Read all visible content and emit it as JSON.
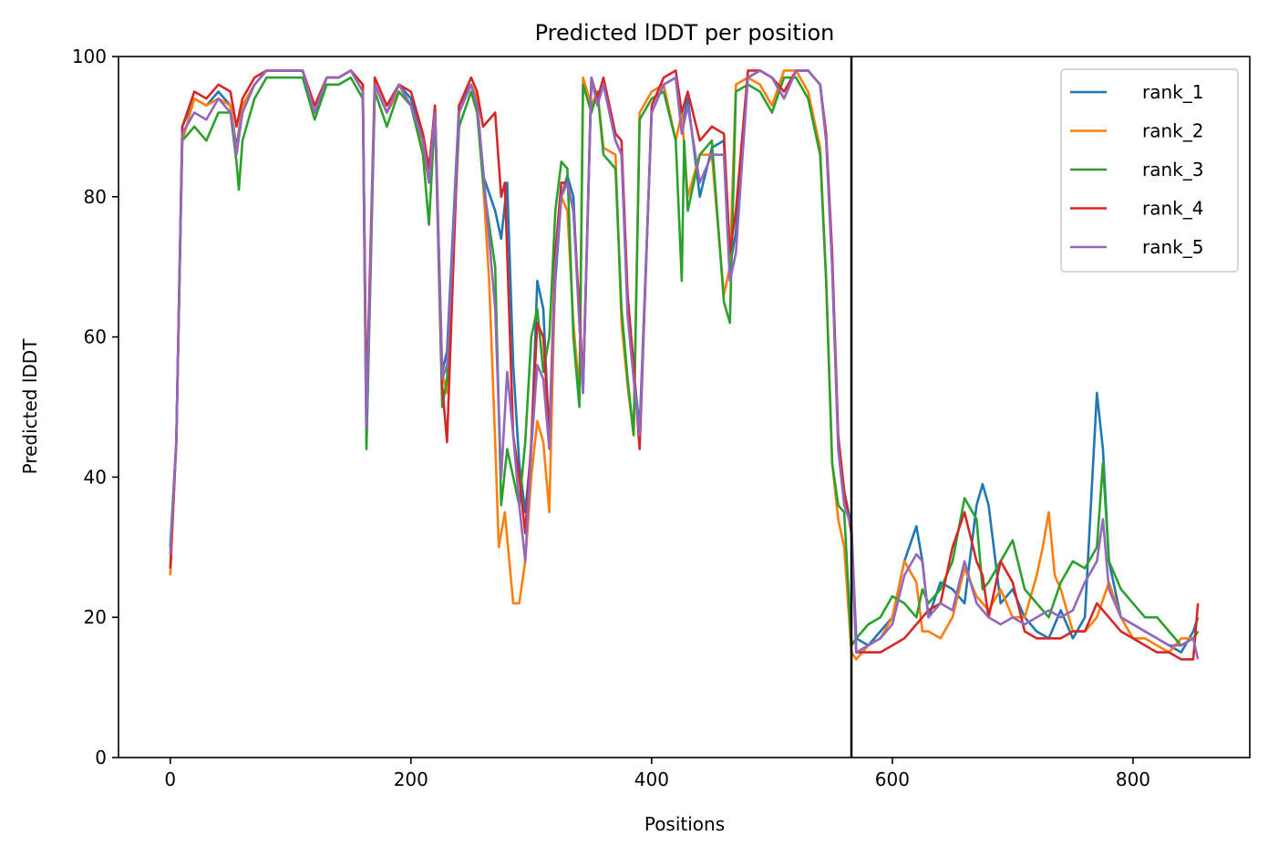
{
  "chart_data": {
    "type": "line",
    "title": "Predicted lDDT per position",
    "xlabel": "Positions",
    "ylabel": "Predicted lDDT",
    "xlim": [
      -43,
      897
    ],
    "ylim": [
      0,
      100
    ],
    "xticks": [
      0,
      200,
      400,
      600,
      800
    ],
    "yticks": [
      0,
      20,
      40,
      60,
      80,
      100
    ],
    "grid": false,
    "legend": "top-right",
    "divider_x": 566,
    "series": [
      {
        "name": "rank_1",
        "color": "#1f77b4",
        "x": [
          0,
          5,
          10,
          20,
          30,
          40,
          50,
          55,
          60,
          70,
          80,
          90,
          100,
          110,
          120,
          130,
          140,
          150,
          160,
          163,
          170,
          180,
          190,
          200,
          210,
          215,
          220,
          226,
          230,
          240,
          250,
          255,
          260,
          270,
          275,
          280,
          285,
          290,
          295,
          300,
          305,
          310,
          315,
          320,
          325,
          330,
          335,
          340,
          343,
          350,
          355,
          360,
          370,
          375,
          380,
          385,
          390,
          400,
          410,
          420,
          425,
          430,
          440,
          450,
          460,
          465,
          470,
          480,
          490,
          500,
          510,
          520,
          530,
          540,
          545,
          550,
          555,
          560,
          566,
          570,
          580,
          590,
          600,
          610,
          620,
          625,
          630,
          640,
          650,
          660,
          670,
          675,
          680,
          690,
          700,
          710,
          720,
          730,
          740,
          750,
          760,
          770,
          775,
          780,
          790,
          800,
          810,
          820,
          830,
          840,
          850,
          854
        ],
        "values": [
          30,
          45,
          90,
          94,
          93,
          95,
          93,
          87,
          93,
          96,
          98,
          98,
          98,
          98,
          92,
          97,
          97,
          98,
          96,
          45,
          96,
          92,
          96,
          94,
          88,
          82,
          93,
          55,
          58,
          93,
          96,
          94,
          83,
          78,
          74,
          82,
          56,
          42,
          35,
          44,
          68,
          64,
          45,
          68,
          80,
          83,
          80,
          62,
          52,
          97,
          93,
          96,
          88,
          86,
          65,
          55,
          47,
          92,
          96,
          97,
          90,
          94,
          80,
          87,
          88,
          70,
          75,
          97,
          98,
          97,
          94,
          98,
          98,
          96,
          88,
          70,
          45,
          38,
          33,
          17,
          16,
          18,
          20,
          28,
          33,
          28,
          20,
          25,
          24,
          22,
          36,
          39,
          36,
          22,
          24,
          20,
          18,
          17,
          21,
          17,
          20,
          52,
          44,
          28,
          20,
          19,
          18,
          17,
          16,
          15,
          18,
          20
        ]
      },
      {
        "name": "rank_2",
        "color": "#ff7f0e",
        "x": [
          0,
          5,
          10,
          20,
          30,
          40,
          50,
          55,
          60,
          70,
          80,
          90,
          100,
          110,
          120,
          130,
          140,
          150,
          160,
          163,
          170,
          180,
          190,
          200,
          210,
          215,
          220,
          226,
          230,
          240,
          250,
          255,
          260,
          265,
          270,
          273,
          278,
          285,
          290,
          295,
          300,
          305,
          310,
          315,
          320,
          325,
          330,
          335,
          340,
          343,
          350,
          355,
          360,
          370,
          375,
          380,
          385,
          390,
          400,
          410,
          420,
          425,
          430,
          440,
          450,
          460,
          465,
          470,
          480,
          490,
          500,
          510,
          520,
          530,
          540,
          545,
          550,
          555,
          560,
          566,
          570,
          580,
          590,
          600,
          610,
          620,
          625,
          630,
          640,
          650,
          660,
          670,
          680,
          690,
          700,
          710,
          720,
          725,
          730,
          735,
          740,
          750,
          760,
          770,
          780,
          790,
          800,
          810,
          820,
          830,
          840,
          850,
          854
        ],
        "values": [
          26,
          45,
          88,
          94,
          93,
          94,
          93,
          86,
          93,
          96,
          98,
          98,
          98,
          98,
          92,
          97,
          97,
          98,
          96,
          48,
          96,
          92,
          95,
          93,
          87,
          82,
          92,
          55,
          52,
          92,
          96,
          94,
          82,
          68,
          45,
          30,
          35,
          22,
          22,
          28,
          40,
          48,
          45,
          35,
          70,
          80,
          78,
          62,
          52,
          97,
          93,
          95,
          87,
          86,
          62,
          53,
          46,
          92,
          95,
          96,
          88,
          92,
          80,
          86,
          86,
          66,
          70,
          96,
          97,
          96,
          93,
          98,
          98,
          95,
          87,
          68,
          42,
          34,
          30,
          15,
          14,
          16,
          17,
          20,
          28,
          25,
          18,
          18,
          17,
          20,
          27,
          23,
          21,
          24,
          20,
          20,
          26,
          30,
          35,
          26,
          24,
          18,
          18,
          20,
          25,
          20,
          17,
          17,
          16,
          15,
          17,
          17,
          18
        ]
      },
      {
        "name": "rank_3",
        "color": "#2ca02c",
        "x": [
          0,
          5,
          10,
          20,
          30,
          40,
          50,
          55,
          57,
          60,
          70,
          80,
          90,
          100,
          110,
          120,
          130,
          140,
          150,
          160,
          163,
          170,
          180,
          190,
          200,
          210,
          215,
          220,
          226,
          230,
          240,
          250,
          255,
          260,
          270,
          275,
          280,
          285,
          290,
          295,
          300,
          305,
          310,
          315,
          320,
          325,
          330,
          335,
          340,
          343,
          350,
          355,
          360,
          370,
          375,
          380,
          385,
          390,
          400,
          410,
          420,
          425,
          427,
          430,
          440,
          450,
          460,
          465,
          470,
          480,
          490,
          500,
          510,
          520,
          530,
          540,
          545,
          550,
          555,
          560,
          566,
          570,
          580,
          590,
          600,
          610,
          620,
          625,
          630,
          640,
          650,
          660,
          670,
          675,
          680,
          690,
          700,
          710,
          720,
          730,
          740,
          750,
          760,
          770,
          775,
          780,
          790,
          800,
          810,
          820,
          830,
          840,
          850,
          854
        ],
        "values": [
          30,
          45,
          88,
          90,
          88,
          92,
          92,
          85,
          81,
          88,
          94,
          97,
          97,
          97,
          97,
          91,
          96,
          96,
          97,
          94,
          44,
          95,
          90,
          95,
          93,
          86,
          76,
          92,
          50,
          54,
          90,
          95,
          92,
          82,
          70,
          36,
          44,
          40,
          36,
          45,
          60,
          64,
          55,
          60,
          78,
          85,
          84,
          60,
          50,
          96,
          92,
          95,
          86,
          84,
          64,
          54,
          46,
          91,
          94,
          95,
          88,
          68,
          88,
          78,
          86,
          88,
          65,
          62,
          95,
          96,
          95,
          92,
          97,
          97,
          94,
          86,
          68,
          42,
          36,
          35,
          16,
          17,
          19,
          20,
          23,
          22,
          20,
          24,
          22,
          24,
          28,
          37,
          34,
          24,
          25,
          28,
          31,
          24,
          22,
          20,
          25,
          28,
          27,
          30,
          42,
          28,
          24,
          22,
          20,
          20,
          18,
          16,
          17,
          18
        ]
      },
      {
        "name": "rank_4",
        "color": "#d62728",
        "x": [
          0,
          5,
          10,
          20,
          30,
          40,
          50,
          55,
          60,
          70,
          80,
          90,
          100,
          110,
          120,
          130,
          140,
          150,
          160,
          163,
          170,
          180,
          190,
          200,
          210,
          215,
          220,
          226,
          230,
          240,
          250,
          255,
          260,
          270,
          275,
          278,
          285,
          290,
          295,
          300,
          305,
          310,
          315,
          320,
          325,
          330,
          335,
          340,
          343,
          350,
          355,
          360,
          370,
          375,
          380,
          385,
          390,
          400,
          410,
          420,
          425,
          430,
          440,
          450,
          460,
          465,
          470,
          480,
          490,
          500,
          510,
          520,
          530,
          540,
          545,
          550,
          555,
          560,
          566,
          570,
          580,
          590,
          600,
          610,
          620,
          625,
          630,
          640,
          650,
          660,
          670,
          675,
          680,
          690,
          700,
          710,
          720,
          730,
          740,
          750,
          760,
          770,
          780,
          790,
          800,
          810,
          820,
          830,
          840,
          850,
          854
        ],
        "values": [
          27,
          45,
          90,
          95,
          94,
          96,
          95,
          90,
          94,
          97,
          98,
          98,
          98,
          98,
          93,
          97,
          97,
          98,
          96,
          50,
          97,
          93,
          96,
          95,
          89,
          84,
          93,
          53,
          45,
          93,
          97,
          95,
          90,
          92,
          80,
          82,
          46,
          40,
          32,
          45,
          62,
          60,
          46,
          72,
          82,
          82,
          78,
          64,
          53,
          97,
          94,
          97,
          89,
          88,
          66,
          56,
          44,
          93,
          97,
          98,
          92,
          95,
          88,
          90,
          89,
          72,
          78,
          98,
          98,
          97,
          95,
          98,
          98,
          96,
          89,
          72,
          46,
          38,
          32,
          15,
          15,
          15,
          16,
          17,
          19,
          20,
          21,
          22,
          30,
          35,
          28,
          26,
          20,
          28,
          25,
          18,
          17,
          17,
          17,
          18,
          18,
          22,
          20,
          18,
          17,
          16,
          15,
          15,
          14,
          14,
          22
        ]
      },
      {
        "name": "rank_5",
        "color": "#9467bd",
        "x": [
          0,
          5,
          10,
          20,
          30,
          40,
          50,
          55,
          60,
          70,
          80,
          90,
          100,
          110,
          120,
          130,
          140,
          150,
          160,
          163,
          170,
          180,
          190,
          200,
          210,
          215,
          220,
          226,
          230,
          240,
          250,
          255,
          260,
          270,
          275,
          280,
          285,
          290,
          295,
          300,
          305,
          310,
          315,
          320,
          325,
          330,
          335,
          340,
          343,
          350,
          355,
          360,
          370,
          375,
          380,
          385,
          390,
          400,
          410,
          420,
          425,
          430,
          440,
          450,
          460,
          465,
          470,
          480,
          490,
          500,
          510,
          520,
          530,
          540,
          545,
          550,
          555,
          560,
          566,
          570,
          580,
          590,
          600,
          610,
          620,
          625,
          630,
          640,
          650,
          660,
          670,
          675,
          680,
          690,
          700,
          710,
          720,
          730,
          740,
          750,
          760,
          770,
          775,
          780,
          790,
          800,
          810,
          820,
          830,
          840,
          850,
          854
        ],
        "values": [
          29,
          45,
          89,
          92,
          91,
          94,
          92,
          86,
          92,
          96,
          98,
          98,
          98,
          98,
          92,
          97,
          97,
          98,
          95,
          47,
          96,
          92,
          96,
          93,
          88,
          82,
          92,
          54,
          56,
          92,
          96,
          93,
          84,
          64,
          40,
          55,
          46,
          36,
          28,
          44,
          56,
          54,
          44,
          70,
          80,
          82,
          78,
          62,
          52,
          97,
          93,
          96,
          88,
          86,
          63,
          54,
          46,
          92,
          96,
          97,
          89,
          93,
          82,
          86,
          86,
          68,
          72,
          97,
          98,
          97,
          94,
          98,
          98,
          96,
          88,
          70,
          44,
          36,
          33,
          15,
          16,
          17,
          19,
          26,
          29,
          28,
          20,
          22,
          21,
          28,
          22,
          21,
          20,
          19,
          20,
          19,
          20,
          21,
          20,
          21,
          25,
          28,
          34,
          24,
          20,
          19,
          18,
          17,
          16,
          16,
          17,
          14
        ]
      }
    ]
  }
}
